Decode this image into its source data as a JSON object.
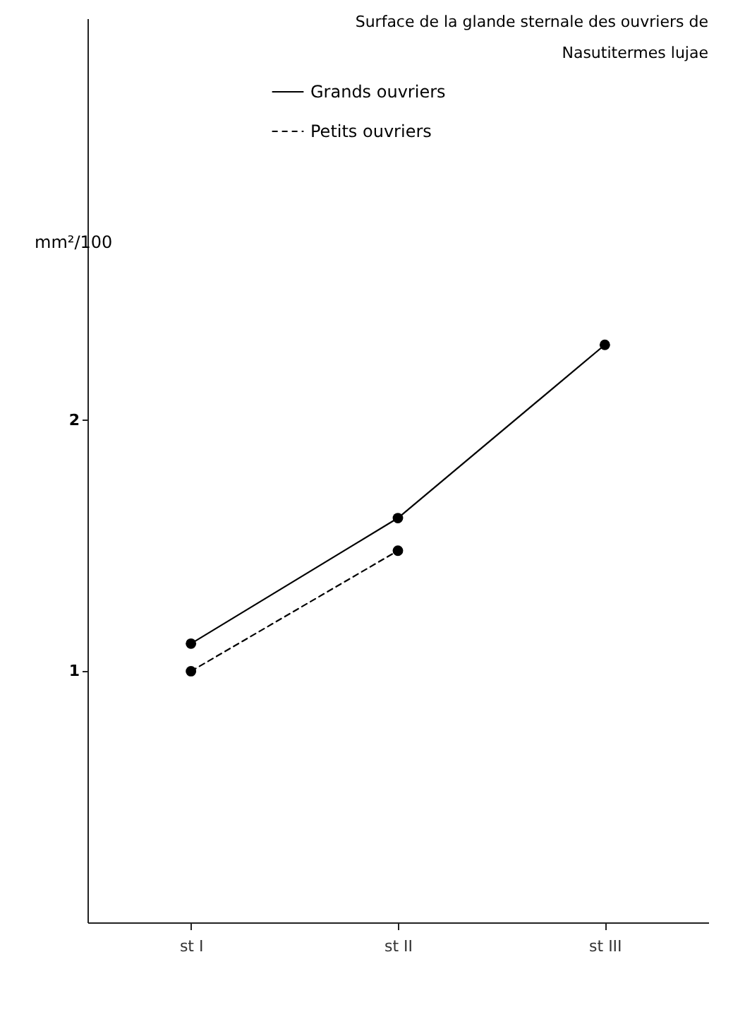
{
  "chart_data": {
    "type": "line",
    "title": "Surface de la glande sternale des ouvriers de Nasutitermes lujae",
    "ylabel": "mm²/100",
    "categories": [
      "st I",
      "st II",
      "st III"
    ],
    "series": [
      {
        "name": "Grands ouvriers",
        "color": "#000000",
        "values": [
          1.11,
          1.61,
          2.3
        ],
        "line_style": "solid"
      },
      {
        "name": "Petits ouvriers",
        "color": "#000000",
        "values": [
          1.0,
          1.48,
          null
        ],
        "line_style": "dashed"
      }
    ],
    "ylim": [
      0,
      3.6
    ],
    "yticks": [
      1,
      2
    ],
    "grid": false,
    "legend": "top",
    "marker": "circle"
  }
}
